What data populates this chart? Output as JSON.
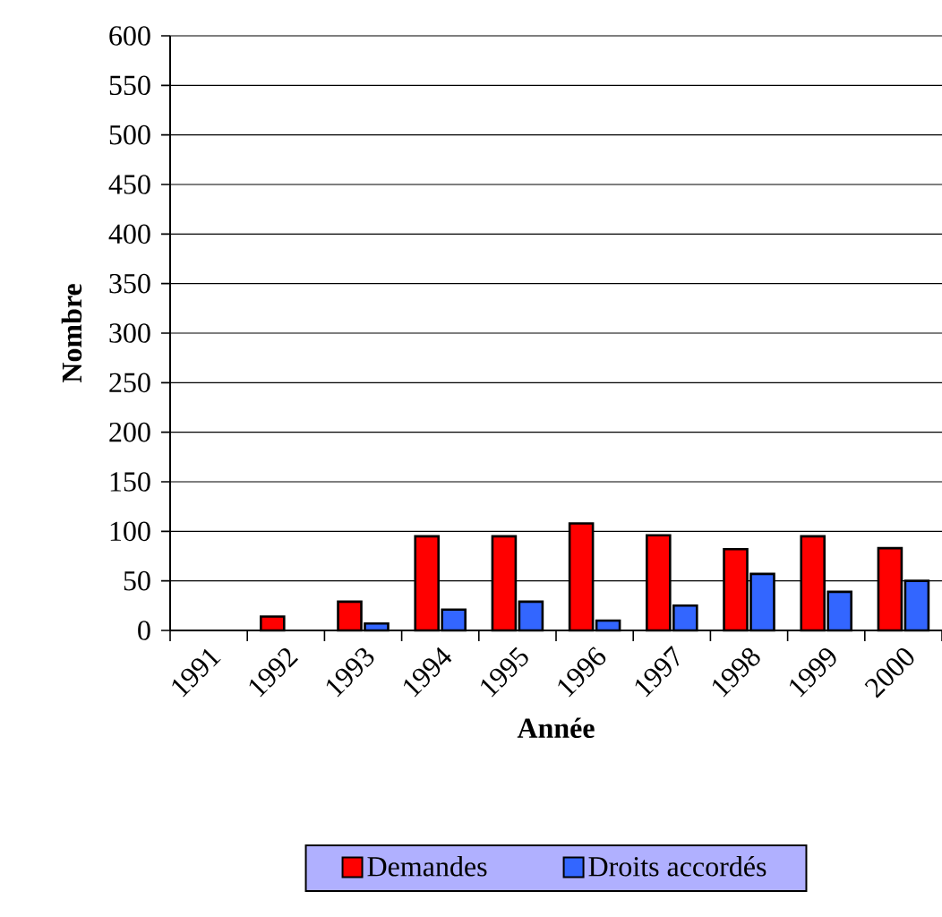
{
  "chart_data": {
    "type": "bar",
    "xlabel": "Année",
    "ylabel": "Nombre",
    "categories": [
      "1991",
      "1992",
      "1993",
      "1994",
      "1995",
      "1996",
      "1997",
      "1998",
      "1999",
      "2000"
    ],
    "series": [
      {
        "name": "Demandes",
        "color": "#ff0000",
        "values": [
          null,
          14,
          29,
          95,
          95,
          108,
          96,
          82,
          95,
          83
        ]
      },
      {
        "name": "Droits accordés",
        "color": "#3366ff",
        "values": [
          null,
          null,
          7,
          21,
          29,
          10,
          25,
          57,
          39,
          50
        ]
      }
    ],
    "ylim": [
      0,
      600
    ],
    "yticks": [
      0,
      50,
      100,
      150,
      200,
      250,
      300,
      350,
      400,
      450,
      500,
      550,
      600
    ],
    "grid": "y",
    "legend": "bottom"
  }
}
